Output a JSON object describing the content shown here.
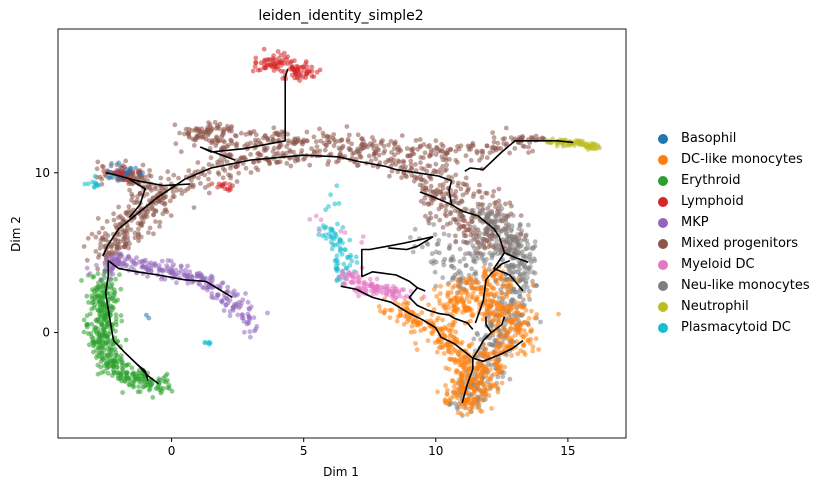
{
  "chart_data": {
    "type": "scatter",
    "title": "leiden_identity_simple2",
    "xlabel": "Dim 1",
    "ylabel": "Dim 2",
    "xlim": [
      -4.3,
      17.2
    ],
    "ylim": [
      -6.6,
      19.0
    ],
    "xticks": [
      0,
      5,
      10,
      15
    ],
    "yticks": [
      0,
      10
    ],
    "grid": false,
    "legend": "right-outside",
    "series": [
      {
        "name": "Basophil",
        "color": "#1f77b4"
      },
      {
        "name": "DC-like monocytes",
        "color": "#ff7f0e"
      },
      {
        "name": "Erythroid",
        "color": "#2ca02c"
      },
      {
        "name": "Lymphoid",
        "color": "#d62728"
      },
      {
        "name": "MKP",
        "color": "#9467bd"
      },
      {
        "name": "Mixed progenitors",
        "color": "#8c564b"
      },
      {
        "name": "Myeloid DC",
        "color": "#e377c2"
      },
      {
        "name": "Neu-like monocytes",
        "color": "#7f7f7f"
      },
      {
        "name": "Neutrophil",
        "color": "#bcbd22"
      },
      {
        "name": "Plasmacytoid DC",
        "color": "#17becf"
      }
    ],
    "clusters": [
      {
        "series": "Mixed progenitors",
        "path": [
          [
            -2.2,
            10.3
          ],
          [
            -1.5,
            9.6
          ],
          [
            -0.7,
            9.3
          ],
          [
            -1,
            8.2
          ],
          [
            -2,
            7
          ],
          [
            -2.6,
            5.4
          ],
          [
            -2.2,
            4.6
          ],
          [
            -1.5,
            6.5
          ],
          [
            -0.3,
            8.6
          ],
          [
            1,
            9.9
          ],
          [
            3,
            10.8
          ],
          [
            5,
            11.2
          ],
          [
            7,
            11.1
          ],
          [
            8.8,
            10.4
          ],
          [
            10.2,
            9.8
          ],
          [
            11.3,
            9
          ],
          [
            12,
            8
          ],
          [
            12.5,
            7
          ],
          [
            12.7,
            6
          ],
          [
            12.3,
            5.2
          ],
          [
            11.5,
            5.8
          ],
          [
            10.5,
            7.8
          ],
          [
            9.5,
            9.2
          ]
        ],
        "n": 800,
        "spread": 0.4
      },
      {
        "series": "Mixed progenitors",
        "path": [
          [
            0.4,
            12.5
          ],
          [
            1.2,
            12.3
          ],
          [
            2.2,
            11.2
          ],
          [
            3,
            12
          ],
          [
            4.4,
            12
          ],
          [
            6,
            12.1
          ],
          [
            7.5,
            11.8
          ],
          [
            9,
            11.5
          ],
          [
            10.5,
            11.2
          ],
          [
            12,
            11.6
          ],
          [
            13,
            12
          ],
          [
            14,
            11.9
          ]
        ],
        "n": 320,
        "spread": 0.3
      },
      {
        "series": "Mixed progenitors",
        "path": [
          [
            -2.5,
            9.8
          ],
          [
            -1.6,
            9.9
          ],
          [
            -1,
            9.5
          ]
        ],
        "n": 50,
        "spread": 0.3
      },
      {
        "series": "Mixed progenitors",
        "path": [
          [
            1,
            12.6
          ],
          [
            2,
            12.6
          ]
        ],
        "n": 50,
        "spread": 0.25
      },
      {
        "series": "Neu-like monocytes",
        "path": [
          [
            11.6,
            7.6
          ],
          [
            12.4,
            6.8
          ],
          [
            13,
            5.5
          ],
          [
            13.2,
            4
          ],
          [
            13,
            2.8
          ],
          [
            12.8,
            1.6
          ],
          [
            12.6,
            0.5
          ],
          [
            12.2,
            -1
          ],
          [
            12,
            -2.2
          ],
          [
            11.5,
            -3.2
          ],
          [
            11,
            -4.4
          ]
        ],
        "n": 480,
        "spread": 0.38
      },
      {
        "series": "Neu-like monocytes",
        "path": [
          [
            9.8,
            6
          ],
          [
            10.6,
            4.5
          ],
          [
            11,
            3
          ],
          [
            11.5,
            4.5
          ],
          [
            12,
            5.8
          ]
        ],
        "n": 120,
        "spread": 0.45
      },
      {
        "series": "DC-like monocytes",
        "path": [
          [
            8.4,
            1.5
          ],
          [
            9.2,
            0.8
          ],
          [
            10,
            0.2
          ],
          [
            10.7,
            -0.8
          ],
          [
            11.2,
            -1.8
          ],
          [
            11.2,
            -3
          ],
          [
            11.1,
            -4.5
          ],
          [
            11.6,
            -2.5
          ],
          [
            12.4,
            -1.2
          ],
          [
            13.2,
            -0.4
          ],
          [
            13,
            1
          ],
          [
            12,
            2
          ],
          [
            11.3,
            1.2
          ],
          [
            10.5,
            1.8
          ],
          [
            12.4,
            3.2
          ],
          [
            11.5,
            3.6
          ]
        ],
        "n": 750,
        "spread": 0.42
      },
      {
        "series": "Erythroid",
        "path": [
          [
            -2.4,
            3.5
          ],
          [
            -2.7,
            2.5
          ],
          [
            -2.6,
            1.5
          ],
          [
            -2.7,
            0.5
          ],
          [
            -2.6,
            -0.4
          ],
          [
            -2.4,
            -1.5
          ],
          [
            -2,
            -2.3
          ],
          [
            -1.5,
            -2.9
          ],
          [
            -0.9,
            -3.2
          ],
          [
            -0.2,
            -3.3
          ]
        ],
        "n": 420,
        "spread": 0.3
      },
      {
        "series": "MKP",
        "path": [
          [
            -2.6,
            3.7
          ],
          [
            -2.2,
            4.4
          ],
          [
            -1.4,
            4.3
          ],
          [
            -0.5,
            4
          ],
          [
            0.4,
            3.6
          ],
          [
            1.3,
            3.2
          ],
          [
            2,
            2.6
          ],
          [
            2.6,
            1.4
          ],
          [
            3.2,
            0.4
          ]
        ],
        "n": 250,
        "spread": 0.28
      },
      {
        "series": "Lymphoid",
        "path": [
          [
            3.4,
            16.5
          ],
          [
            4,
            17
          ],
          [
            4.6,
            16.8
          ],
          [
            5,
            16.2
          ],
          [
            4.4,
            16
          ]
        ],
        "n": 110,
        "spread": 0.28
      },
      {
        "series": "Lymphoid",
        "path": [
          [
            -2.4,
            10.3
          ],
          [
            -1.9,
            10.1
          ],
          [
            -1.7,
            9.6
          ]
        ],
        "n": 25,
        "spread": 0.22
      },
      {
        "series": "Lymphoid",
        "path": [
          [
            1.7,
            9.4
          ],
          [
            2.3,
            9.0
          ]
        ],
        "n": 15,
        "spread": 0.16
      },
      {
        "series": "Plasmacytoid DC",
        "path": [
          [
            5.9,
            6.6
          ],
          [
            6.4,
            5.6
          ],
          [
            6.6,
            4.5
          ],
          [
            6.3,
            3.5
          ],
          [
            6.7,
            3.0
          ]
        ],
        "n": 70,
        "spread": 0.22
      },
      {
        "series": "Plasmacytoid DC",
        "path": [
          [
            -3.2,
            9.4
          ],
          [
            -2.8,
            9.3
          ]
        ],
        "n": 12,
        "spread": 0.15
      },
      {
        "series": "Plasmacytoid DC",
        "path": [
          [
            6,
            8.2
          ],
          [
            6.5,
            8.5
          ]
        ],
        "n": 6,
        "spread": 0.3
      },
      {
        "series": "Plasmacytoid DC",
        "path": [
          [
            1.3,
            -0.6
          ],
          [
            1.5,
            -0.7
          ]
        ],
        "n": 6,
        "spread": 0.06
      },
      {
        "series": "Myeloid DC",
        "path": [
          [
            6.6,
            3.8
          ],
          [
            7,
            3.0
          ],
          [
            7.6,
            2.7
          ],
          [
            8.3,
            2.5
          ],
          [
            9,
            2.4
          ]
        ],
        "n": 110,
        "spread": 0.25
      },
      {
        "series": "Myeloid DC",
        "path": [
          [
            5,
            7.2
          ],
          [
            7.3,
            5.8
          ],
          [
            8.1,
            6.0
          ]
        ],
        "n": 8,
        "spread": 0.35
      },
      {
        "series": "Basophil",
        "path": [
          [
            -2,
            10.4
          ],
          [
            -1.3,
            10.1
          ],
          [
            -2.7,
            9.6
          ]
        ],
        "n": 20,
        "spread": 0.2
      },
      {
        "series": "Neutrophil",
        "path": [
          [
            14.2,
            12.0
          ],
          [
            15,
            11.9
          ],
          [
            15.6,
            11.8
          ],
          [
            16.1,
            11.6
          ]
        ],
        "n": 90,
        "spread": 0.1
      },
      {
        "series": "Basophil",
        "path": [
          [
            -0.9,
            1.0
          ]
        ],
        "n": 2,
        "spread": 0.05
      }
    ],
    "trajectory": [
      [
        [
          -2.6,
          4.8
        ],
        [
          -2.4,
          5.5
        ],
        [
          -2,
          6.5
        ],
        [
          -1.4,
          7.3
        ],
        [
          -0.5,
          8.5
        ],
        [
          0.5,
          9.6
        ],
        [
          1.5,
          10.3
        ],
        [
          3,
          10.8
        ],
        [
          5,
          11.1
        ],
        [
          6.3,
          11.0
        ]
      ],
      [
        [
          -2.5,
          10.0
        ],
        [
          -2.2,
          9.9
        ],
        [
          -1.3,
          9.5
        ],
        [
          -0.3,
          9.2
        ],
        [
          0.7,
          9.3
        ]
      ],
      [
        [
          -1.6,
          9.6
        ],
        [
          -1.0,
          9.0
        ],
        [
          -1.2,
          8.0
        ],
        [
          -1.6,
          7.2
        ]
      ],
      [
        [
          4.4,
          16.5
        ],
        [
          4.3,
          16.0
        ],
        [
          4.3,
          12.0
        ],
        [
          2.7,
          11.5
        ],
        [
          1.5,
          11.3
        ],
        [
          1.1,
          11.6
        ],
        [
          2.4,
          10.8
        ]
      ],
      [
        [
          6.3,
          11.0
        ],
        [
          7.1,
          10.7
        ],
        [
          8.1,
          10.4
        ],
        [
          8.5,
          10.2
        ],
        [
          9.3,
          10.0
        ],
        [
          10.1,
          9.8
        ],
        [
          10.6,
          9.5
        ]
      ],
      [
        [
          11.1,
          10.1
        ],
        [
          11.3,
          10.3
        ],
        [
          11.8,
          10.2
        ],
        [
          12.5,
          11.3
        ],
        [
          13,
          12.0
        ],
        [
          13.7,
          12.0
        ],
        [
          14.6,
          12.0
        ],
        [
          15.2,
          11.9
        ]
      ],
      [
        [
          10.6,
          9.5
        ],
        [
          10.5,
          8.9
        ],
        [
          10.6,
          8.0
        ],
        [
          11,
          7.6
        ],
        [
          11.6,
          7.3
        ],
        [
          12.2,
          6.5
        ],
        [
          12.4,
          6.0
        ],
        [
          12.6,
          5.0
        ],
        [
          12.2,
          4.0
        ],
        [
          12.8,
          3.6
        ],
        [
          13.3,
          2.6
        ]
      ],
      [
        [
          12.6,
          5.0
        ],
        [
          13.0,
          4.7
        ],
        [
          13.5,
          4.4
        ]
      ],
      [
        [
          9.4,
          8.8
        ],
        [
          9.9,
          8.5
        ],
        [
          10.6,
          8.0
        ]
      ],
      [
        [
          9.9,
          6.0
        ],
        [
          9.3,
          5.4
        ],
        [
          8.9,
          5.2
        ],
        [
          8.2,
          5.3
        ]
      ],
      [
        [
          9.9,
          6.0
        ],
        [
          8.8,
          5.6
        ],
        [
          7.5,
          5.2
        ],
        [
          7.2,
          5.2
        ],
        [
          7.2,
          3.5
        ]
      ],
      [
        [
          7.2,
          3.5
        ],
        [
          7.6,
          3.8
        ],
        [
          8.5,
          3.6
        ],
        [
          9.0,
          3.2
        ],
        [
          9.3,
          2.8
        ],
        [
          9.6,
          2.6
        ]
      ],
      [
        [
          9.3,
          2.8
        ],
        [
          9.0,
          2.2
        ],
        [
          9.3,
          1.7
        ],
        [
          9.7,
          1.4
        ],
        [
          10.1,
          1.2
        ],
        [
          10.5,
          1.1
        ],
        [
          10.7,
          0.9
        ],
        [
          11.2,
          0.6
        ],
        [
          11.4,
          0.2
        ]
      ],
      [
        [
          6.4,
          2.9
        ],
        [
          7.0,
          2.7
        ],
        [
          7.6,
          2.2
        ],
        [
          8.3,
          1.9
        ],
        [
          9.0,
          1.2
        ],
        [
          9.5,
          0.8
        ],
        [
          10,
          0.3
        ],
        [
          10.2,
          -0.3
        ],
        [
          10.7,
          -0.7
        ],
        [
          11.1,
          -1.2
        ]
      ],
      [
        [
          11.1,
          -1.2
        ],
        [
          11.4,
          -1.6
        ],
        [
          11.4,
          -2.3
        ],
        [
          11.2,
          -3.2
        ],
        [
          11.0,
          -4.4
        ]
      ],
      [
        [
          11.4,
          -1.6
        ],
        [
          11.8,
          -1.8
        ],
        [
          12.4,
          -1.4
        ],
        [
          12.9,
          -1.0
        ],
        [
          13.3,
          -0.5
        ]
      ],
      [
        [
          11.4,
          -1.6
        ],
        [
          11.6,
          -1.1
        ],
        [
          11.8,
          -0.5
        ],
        [
          12.1,
          0.0
        ]
      ],
      [
        [
          12.1,
          0.0
        ],
        [
          11.9,
          0.5
        ],
        [
          11.9,
          1.0
        ]
      ],
      [
        [
          12.1,
          0.0
        ],
        [
          12.5,
          0.5
        ],
        [
          12.6,
          1.0
        ]
      ],
      [
        [
          11.5,
          0.6
        ],
        [
          11.8,
          2.0
        ],
        [
          11.9,
          3.3
        ],
        [
          12.1,
          3.7
        ],
        [
          12.5,
          4.3
        ],
        [
          12.8,
          4.5
        ]
      ],
      [
        [
          -2.4,
          4.5
        ],
        [
          -2.0,
          4.0
        ],
        [
          -1.3,
          3.8
        ],
        [
          -0.5,
          3.6
        ],
        [
          0.5,
          3.3
        ],
        [
          1.3,
          3.2
        ],
        [
          1.8,
          2.7
        ],
        [
          2.3,
          2.2
        ]
      ],
      [
        [
          -2.4,
          4.5
        ],
        [
          -2.4,
          3.5
        ],
        [
          -2.5,
          2.5
        ],
        [
          -2.4,
          1.5
        ],
        [
          -2.3,
          0.5
        ],
        [
          -2.2,
          -0.5
        ],
        [
          -1.8,
          -1.2
        ],
        [
          -1.3,
          -2.0
        ],
        [
          -1.0,
          -2.4
        ],
        [
          -0.9,
          -3.0
        ]
      ],
      [
        [
          -1.3,
          -2.0
        ],
        [
          -0.9,
          -2.7
        ],
        [
          -0.5,
          -3.2
        ]
      ]
    ]
  }
}
